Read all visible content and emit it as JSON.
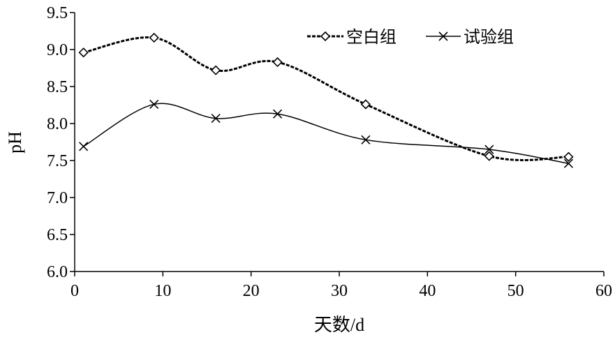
{
  "chart_data": {
    "type": "line",
    "xlabel": "天数/d",
    "ylabel": "pH",
    "xlim": [
      0,
      60
    ],
    "ylim": [
      6.0,
      9.5
    ],
    "x_ticks": [
      "0",
      "10",
      "20",
      "30",
      "40",
      "50",
      "60"
    ],
    "y_ticks": [
      "6.0",
      "6.5",
      "7.0",
      "7.5",
      "8.0",
      "8.5",
      "9.0",
      "9.5"
    ],
    "grid": false,
    "legend_position": "top-right",
    "series": [
      {
        "name": "空白组",
        "marker": "diamond",
        "line_style": "dashed-bold",
        "color": "#000000",
        "x": [
          1,
          9,
          16,
          23,
          33,
          47,
          56
        ],
        "y": [
          8.96,
          9.16,
          8.72,
          8.83,
          8.26,
          7.56,
          7.55
        ]
      },
      {
        "name": "试验组",
        "marker": "x",
        "line_style": "solid",
        "color": "#000000",
        "x": [
          1,
          9,
          16,
          23,
          33,
          47,
          56
        ],
        "y": [
          7.69,
          8.26,
          8.07,
          8.13,
          7.78,
          7.65,
          7.46
        ]
      }
    ]
  }
}
